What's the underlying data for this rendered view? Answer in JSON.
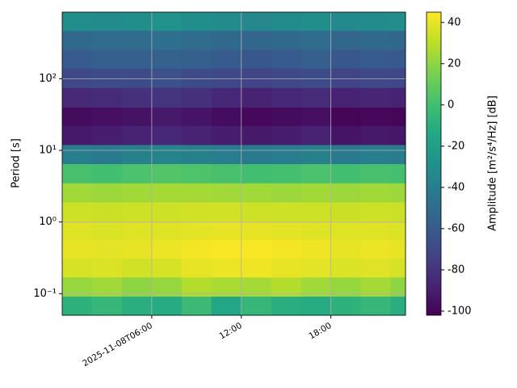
{
  "chart_data": {
    "type": "heatmap",
    "y_label": "Period [s]",
    "xlim": [
      0,
      23
    ],
    "xticks": [
      {
        "value": 6,
        "label": "2025-11-08T06:00"
      },
      {
        "value": 12,
        "label": "12:00"
      },
      {
        "value": 18,
        "label": "18:00"
      }
    ],
    "xbins": [
      0,
      2,
      4,
      6,
      8,
      10,
      12,
      14,
      16,
      18,
      20,
      22,
      23
    ],
    "ylim": [
      0.05,
      850
    ],
    "log_y": true,
    "yticks": [
      {
        "value": 0.1,
        "label": "10⁻¹"
      },
      {
        "value": 1,
        "label": "10⁰"
      },
      {
        "value": 10,
        "label": "10¹"
      },
      {
        "value": 100,
        "label": "10²"
      }
    ],
    "ybins": [
      0.05,
      0.092,
      0.17,
      0.31,
      0.57,
      1.05,
      1.9,
      3.5,
      6.5,
      12,
      22,
      40,
      75,
      140,
      255,
      470,
      850
    ],
    "grid": true,
    "colormap": "viridis",
    "values": [
      [
        -8,
        -5,
        -10,
        -12,
        -3,
        -15,
        -5,
        -10,
        -12,
        -8,
        -5,
        -10
      ],
      [
        22,
        24,
        20,
        22,
        28,
        26,
        25,
        28,
        24,
        22,
        25,
        20
      ],
      [
        36,
        37,
        35,
        36,
        40,
        41,
        42,
        40,
        39,
        37,
        38,
        36
      ],
      [
        40,
        39,
        40,
        41,
        43,
        44,
        44,
        43,
        42,
        40,
        41,
        40
      ],
      [
        38,
        37,
        38,
        38,
        39,
        40,
        40,
        39,
        38,
        38,
        38,
        37
      ],
      [
        34,
        33,
        34,
        34,
        35,
        35,
        34,
        34,
        34,
        33,
        34,
        33
      ],
      [
        24,
        23,
        24,
        25,
        25,
        24,
        24,
        23,
        24,
        23,
        24,
        23
      ],
      [
        2,
        0,
        3,
        5,
        4,
        2,
        0,
        1,
        3,
        0,
        2,
        1
      ],
      [
        -40,
        -42,
        -38,
        -36,
        -38,
        -40,
        -42,
        -40,
        -38,
        -42,
        -40,
        -41
      ],
      [
        -92,
        -90,
        -88,
        -86,
        -88,
        -90,
        -92,
        -90,
        -88,
        -94,
        -92,
        -93
      ],
      [
        -98,
        -96,
        -95,
        -92,
        -94,
        -97,
        -99,
        -98,
        -96,
        -100,
        -99,
        -100
      ],
      [
        -85,
        -84,
        -82,
        -80,
        -82,
        -86,
        -88,
        -86,
        -84,
        -88,
        -87,
        -88
      ],
      [
        -70,
        -68,
        -68,
        -66,
        -68,
        -70,
        -72,
        -70,
        -68,
        -72,
        -70,
        -71
      ],
      [
        -60,
        -58,
        -58,
        -56,
        -58,
        -60,
        -62,
        -60,
        -58,
        -62,
        -60,
        -61
      ],
      [
        -52,
        -50,
        -50,
        -48,
        -50,
        -52,
        -54,
        -52,
        -50,
        -54,
        -52,
        -53
      ],
      [
        -30,
        -32,
        -30,
        -28,
        -30,
        -32,
        -34,
        -32,
        -30,
        -33,
        -32,
        -31
      ]
    ],
    "colorbar": {
      "label": "Amplitude [m²/s⁴/Hz] [dB]",
      "lim": [
        -102,
        45
      ],
      "ticks": [
        -100,
        -80,
        -60,
        -40,
        -20,
        0,
        20,
        40
      ]
    }
  }
}
